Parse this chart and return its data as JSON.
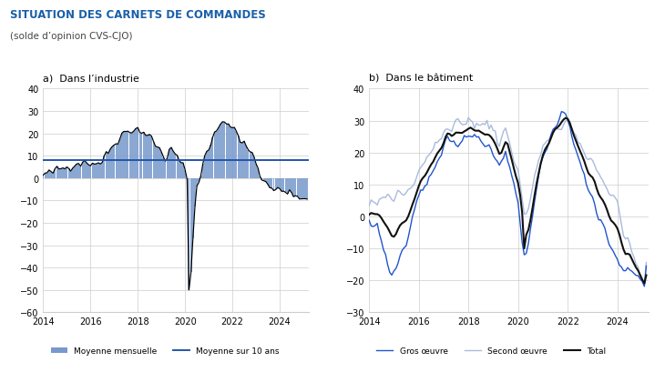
{
  "title": "SITUATION DES CARNETS DE COMMANDES",
  "subtitle": "(solde d’opinion CVS-CJO)",
  "panel_a_title": "a)  Dans l’industrie",
  "panel_b_title": "b)  Dans le bâtiment",
  "mean_10y": 8,
  "legend_a": [
    "Moyenne mensuelle",
    "Moyenne sur 10 ans"
  ],
  "legend_b": [
    "Gros œuvre",
    "Second œuvre",
    "Total"
  ],
  "color_bar": "#7799cc",
  "color_mean": "#2255aa",
  "color_gros": "#2255cc",
  "color_second": "#aabbdd",
  "color_total": "#111111",
  "ylim_a": [
    -60,
    40
  ],
  "ylim_b": [
    -30,
    40
  ],
  "yticks_a": [
    -60,
    -50,
    -40,
    -30,
    -20,
    -10,
    0,
    10,
    20,
    30,
    40
  ],
  "yticks_b": [
    -30,
    -20,
    -10,
    0,
    10,
    20,
    30,
    40
  ],
  "grid_color": "#cccccc",
  "title_color": "#1a5fa8",
  "subtitle_color": "#444444",
  "bg_color": "#ffffff"
}
